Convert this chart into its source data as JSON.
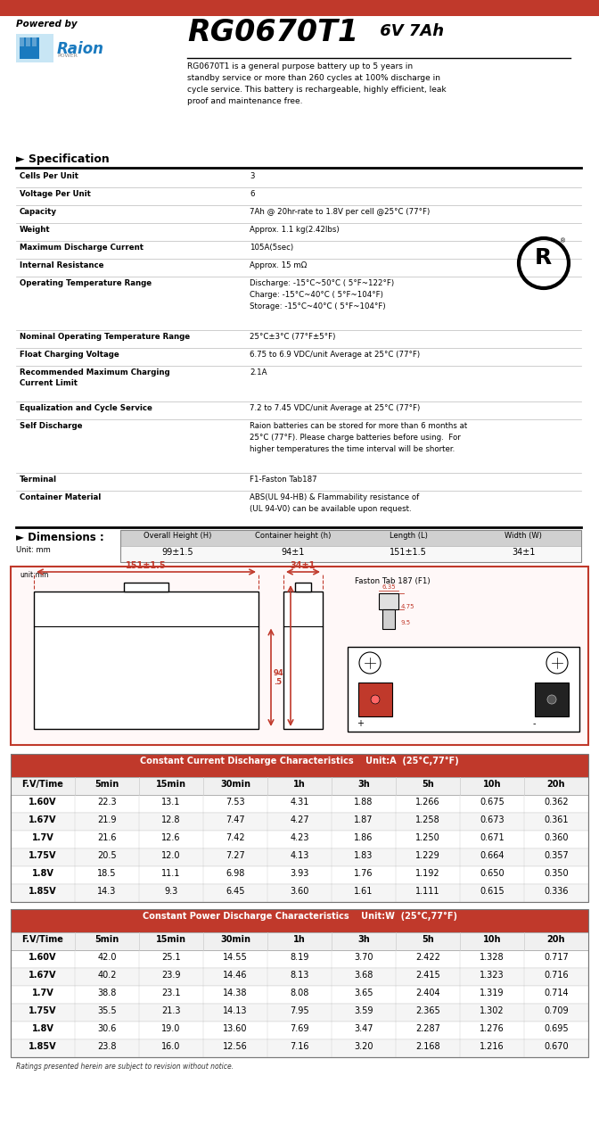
{
  "page_bg": "#ffffff",
  "top_bar_color": "#c0392b",
  "powered_by_text": "Powered by",
  "model_text": "RG0670T1",
  "model_subtitle": " 6V 7Ah",
  "description": "RG0670T1 is a general purpose battery up to 5 years in\nstandby service or more than 260 cycles at 100% discharge in\ncycle service. This battery is rechargeable, highly efficient, leak\nproof and maintenance free.",
  "spec_header": "► Specification",
  "spec_rows": [
    [
      "Cells Per Unit",
      "3",
      1
    ],
    [
      "Voltage Per Unit",
      "6",
      1
    ],
    [
      "Capacity",
      "7Ah @ 20hr-rate to 1.8V per cell @25°C (77°F)",
      1
    ],
    [
      "Weight",
      "Approx. 1.1 kg(2.42lbs)",
      1
    ],
    [
      "Maximum Discharge Current",
      "105A(5sec)",
      1
    ],
    [
      "Internal Resistance",
      "Approx. 15 mΩ",
      1
    ],
    [
      "Operating Temperature Range",
      "Discharge: -15°C~50°C ( 5°F~122°F)\nCharge: -15°C~40°C ( 5°F~104°F)\nStorage: -15°C~40°C ( 5°F~104°F)",
      3
    ],
    [
      "Nominal Operating Temperature Range",
      "25°C±3°C (77°F±5°F)",
      1
    ],
    [
      "Float Charging Voltage",
      "6.75 to 6.9 VDC/unit Average at 25°C (77°F)",
      1
    ],
    [
      "Recommended Maximum Charging\nCurrent Limit",
      "2.1A",
      2
    ],
    [
      "Equalization and Cycle Service",
      "7.2 to 7.45 VDC/unit Average at 25°C (77°F)",
      1
    ],
    [
      "Self Discharge",
      "Raion batteries can be stored for more than 6 months at\n25°C (77°F). Please charge batteries before using.  For\nhigher temperatures the time interval will be shorter.",
      3
    ],
    [
      "Terminal",
      "F1-Faston Tab187",
      1
    ],
    [
      "Container Material",
      "ABS(UL 94-HB) & Flammability resistance of\n(UL 94-V0) can be available upon request.",
      2
    ]
  ],
  "dim_header": "► Dimensions :",
  "dim_unit": "Unit: mm",
  "dim_cols": [
    "Overall Height (H)",
    "Container height (h)",
    "Length (L)",
    "Width (W)"
  ],
  "dim_vals": [
    "99±1.5",
    "94±1",
    "151±1.5",
    "34±1"
  ],
  "dim_border_color": "#c0392b",
  "cc_header": "Constant Current Discharge Characteristics    Unit:A  (25°C,77°F)",
  "cp_header": "Constant Power Discharge Characteristics    Unit:W  (25°C,77°F)",
  "table_header_bg": "#c0392b",
  "table_header_fg": "#ffffff",
  "table_col_headers": [
    "F.V/Time",
    "5min",
    "15min",
    "30min",
    "1h",
    "3h",
    "5h",
    "10h",
    "20h"
  ],
  "cc_data": [
    [
      "1.60V",
      "22.3",
      "13.1",
      "7.53",
      "4.31",
      "1.88",
      "1.266",
      "0.675",
      "0.362"
    ],
    [
      "1.67V",
      "21.9",
      "12.8",
      "7.47",
      "4.27",
      "1.87",
      "1.258",
      "0.673",
      "0.361"
    ],
    [
      "1.7V",
      "21.6",
      "12.6",
      "7.42",
      "4.23",
      "1.86",
      "1.250",
      "0.671",
      "0.360"
    ],
    [
      "1.75V",
      "20.5",
      "12.0",
      "7.27",
      "4.13",
      "1.83",
      "1.229",
      "0.664",
      "0.357"
    ],
    [
      "1.8V",
      "18.5",
      "11.1",
      "6.98",
      "3.93",
      "1.76",
      "1.192",
      "0.650",
      "0.350"
    ],
    [
      "1.85V",
      "14.3",
      "9.3",
      "6.45",
      "3.60",
      "1.61",
      "1.111",
      "0.615",
      "0.336"
    ]
  ],
  "cp_data": [
    [
      "1.60V",
      "42.0",
      "25.1",
      "14.55",
      "8.19",
      "3.70",
      "2.422",
      "1.328",
      "0.717"
    ],
    [
      "1.67V",
      "40.2",
      "23.9",
      "14.46",
      "8.13",
      "3.68",
      "2.415",
      "1.323",
      "0.716"
    ],
    [
      "1.7V",
      "38.8",
      "23.1",
      "14.38",
      "8.08",
      "3.65",
      "2.404",
      "1.319",
      "0.714"
    ],
    [
      "1.75V",
      "35.5",
      "21.3",
      "14.13",
      "7.95",
      "3.59",
      "2.365",
      "1.302",
      "0.709"
    ],
    [
      "1.8V",
      "30.6",
      "19.0",
      "13.60",
      "7.69",
      "3.47",
      "2.287",
      "1.276",
      "0.695"
    ],
    [
      "1.85V",
      "23.8",
      "16.0",
      "12.56",
      "7.16",
      "3.20",
      "2.168",
      "1.216",
      "0.670"
    ]
  ],
  "footer_text": "Ratings presented herein are subject to revision without notice.",
  "raion_blue": "#1a7abf"
}
